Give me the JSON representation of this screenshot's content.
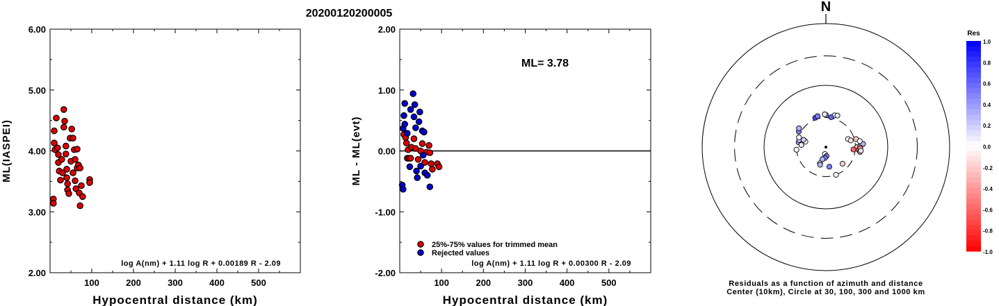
{
  "title": "20200120200005",
  "chart_data": [
    {
      "type": "scatter",
      "xlabel": "Hypocentral distance (km)",
      "ylabel": "ML(IASPEI)",
      "xlim": [
        0,
        600
      ],
      "ylim": [
        2.0,
        6.0
      ],
      "x_ticks": [
        "100",
        "200",
        "300",
        "400",
        "500"
      ],
      "y_ticks": [
        "2.00",
        "3.00",
        "4.00",
        "5.00",
        "6.00"
      ],
      "formula": "log A(nm) + 1.11 log R + 0.00189 R - 2.09",
      "series": [
        {
          "color": "#e00000",
          "points": [
            [
              8,
              3.21
            ],
            [
              8,
              3.14
            ],
            [
              10,
              4.33
            ],
            [
              10,
              4.13
            ],
            [
              12,
              4.02
            ],
            [
              15,
              4.54
            ],
            [
              18,
              4.05
            ],
            [
              20,
              3.94
            ],
            [
              20,
              3.81
            ],
            [
              22,
              3.67
            ],
            [
              25,
              3.52
            ],
            [
              28,
              3.86
            ],
            [
              30,
              3.64
            ],
            [
              33,
              4.68
            ],
            [
              33,
              4.39
            ],
            [
              35,
              4.49
            ],
            [
              38,
              4.08
            ],
            [
              38,
              3.95
            ],
            [
              40,
              3.7
            ],
            [
              40,
              3.56
            ],
            [
              42,
              3.46
            ],
            [
              42,
              3.36
            ],
            [
              45,
              3.3
            ],
            [
              48,
              4.21
            ],
            [
              50,
              3.83
            ],
            [
              52,
              4.36
            ],
            [
              55,
              4.21
            ],
            [
              55,
              3.64
            ],
            [
              58,
              4.02
            ],
            [
              60,
              3.86
            ],
            [
              60,
              3.51
            ],
            [
              62,
              3.38
            ],
            [
              65,
              4.03
            ],
            [
              65,
              3.72
            ],
            [
              68,
              3.77
            ],
            [
              70,
              3.31
            ],
            [
              72,
              3.72
            ],
            [
              72,
              3.1
            ],
            [
              75,
              3.43
            ],
            [
              78,
              3.25
            ],
            [
              95,
              3.53
            ],
            [
              95,
              3.48
            ]
          ]
        }
      ]
    },
    {
      "type": "scatter",
      "xlabel": "Hypocentral distance (km)",
      "ylabel": "ML - ML(evt)",
      "xlim": [
        0,
        600
      ],
      "ylim": [
        -2.0,
        2.0
      ],
      "x_ticks": [
        "100",
        "200",
        "300",
        "400",
        "500"
      ],
      "y_ticks": [
        "-2.00",
        "-1.00",
        "0.00",
        "1.00",
        "2.00"
      ],
      "annotation": "ML= 3.78",
      "reference_line": 0.0,
      "formula": "log A(nm) + 1.11 log R + 0.00300 R - 2.09",
      "legend": [
        "25%-75% values for trimmed mean",
        "Rejected values"
      ],
      "series": [
        {
          "name": "25%-75% values for trimmed mean",
          "color": "#e00000",
          "points": [
            [
              10,
              0.27
            ],
            [
              14,
              0.22
            ],
            [
              16,
              0.13
            ],
            [
              18,
              -0.12
            ],
            [
              20,
              0.02
            ],
            [
              22,
              -0.12
            ],
            [
              26,
              -0.12
            ],
            [
              28,
              0.06
            ],
            [
              34,
              0.2
            ],
            [
              38,
              0.04
            ],
            [
              44,
              -0.14
            ],
            [
              50,
              0.0
            ],
            [
              54,
              0.12
            ],
            [
              60,
              -0.19
            ],
            [
              64,
              -0.02
            ],
            [
              70,
              0.09
            ],
            [
              72,
              -0.03
            ],
            [
              75,
              -0.21
            ],
            [
              78,
              -0.3
            ],
            [
              90,
              -0.21
            ],
            [
              94,
              -0.26
            ]
          ]
        },
        {
          "name": "Rejected values",
          "color": "#0000d0",
          "points": [
            [
              6,
              -0.56
            ],
            [
              8,
              -0.63
            ],
            [
              8,
              0.37
            ],
            [
              10,
              0.58
            ],
            [
              12,
              0.78
            ],
            [
              12,
              0.44
            ],
            [
              18,
              0.29
            ],
            [
              24,
              -0.26
            ],
            [
              26,
              0.68
            ],
            [
              32,
              0.94
            ],
            [
              34,
              0.56
            ],
            [
              36,
              0.76
            ],
            [
              38,
              0.38
            ],
            [
              40,
              -0.33
            ],
            [
              42,
              -0.44
            ],
            [
              46,
              0.48
            ],
            [
              48,
              0.64
            ],
            [
              50,
              -0.25
            ],
            [
              54,
              0.33
            ],
            [
              56,
              -0.07
            ],
            [
              58,
              0.31
            ],
            [
              60,
              -0.36
            ],
            [
              66,
              -0.4
            ],
            [
              72,
              -0.59
            ]
          ]
        }
      ]
    }
  ],
  "polar": {
    "north_label": "N",
    "caption_line1": "Residuals as a function of azimuth and distance",
    "caption_line2": "Center (10km), Circle at 30, 100, 300 and 1000 km",
    "points": [
      [
        3,
        188,
        0.0
      ],
      [
        4,
        176,
        0.5
      ],
      [
        5,
        185,
        0.5
      ],
      [
        6,
        196,
        0.3
      ],
      [
        9,
        200,
        0.0
      ],
      [
        10,
        198,
        0.3
      ],
      [
        11,
        170,
        0.5
      ],
      [
        22,
        340,
        0.7
      ],
      [
        23,
        345,
        0.5
      ],
      [
        24,
        15,
        0.0
      ],
      [
        25,
        20,
        0.1
      ],
      [
        20,
        160,
        0.0
      ],
      [
        21,
        10,
        0.6
      ],
      [
        23,
        0,
        0.4
      ],
      [
        24,
        358,
        0.1
      ],
      [
        18,
        280,
        0.4
      ],
      [
        18,
        285,
        0.2
      ],
      [
        19,
        290,
        0.0
      ],
      [
        22,
        300,
        0.5
      ],
      [
        24,
        305,
        0.3
      ],
      [
        14,
        70,
        0.0
      ],
      [
        16,
        75,
        -0.1
      ],
      [
        22,
        75,
        -0.2
      ],
      [
        22,
        90,
        -0.3
      ],
      [
        24,
        95,
        -0.5
      ],
      [
        26,
        88,
        -0.2
      ],
      [
        26,
        98,
        -0.4
      ],
      [
        28,
        86,
        -0.1
      ],
      [
        30,
        85,
        0.3
      ],
      [
        26,
        80,
        0.0
      ],
      [
        14,
        135,
        -0.2
      ],
      [
        18,
        95,
        -0.6
      ],
      [
        26,
        92,
        -0.4
      ],
      [
        27,
        96,
        0.1
      ],
      [
        12,
        285,
        0.0
      ],
      [
        14,
        288,
        0.2
      ],
      [
        15,
        275,
        0.1
      ],
      [
        20,
        265,
        0.0
      ]
    ]
  },
  "colorbar": {
    "title": "Res",
    "labels": [
      "1.0",
      "0.8",
      "0.6",
      "0.4",
      "0.2",
      "0.0",
      "-0.2",
      "-0.4",
      "-0.6",
      "-0.8",
      "-1.0"
    ]
  }
}
